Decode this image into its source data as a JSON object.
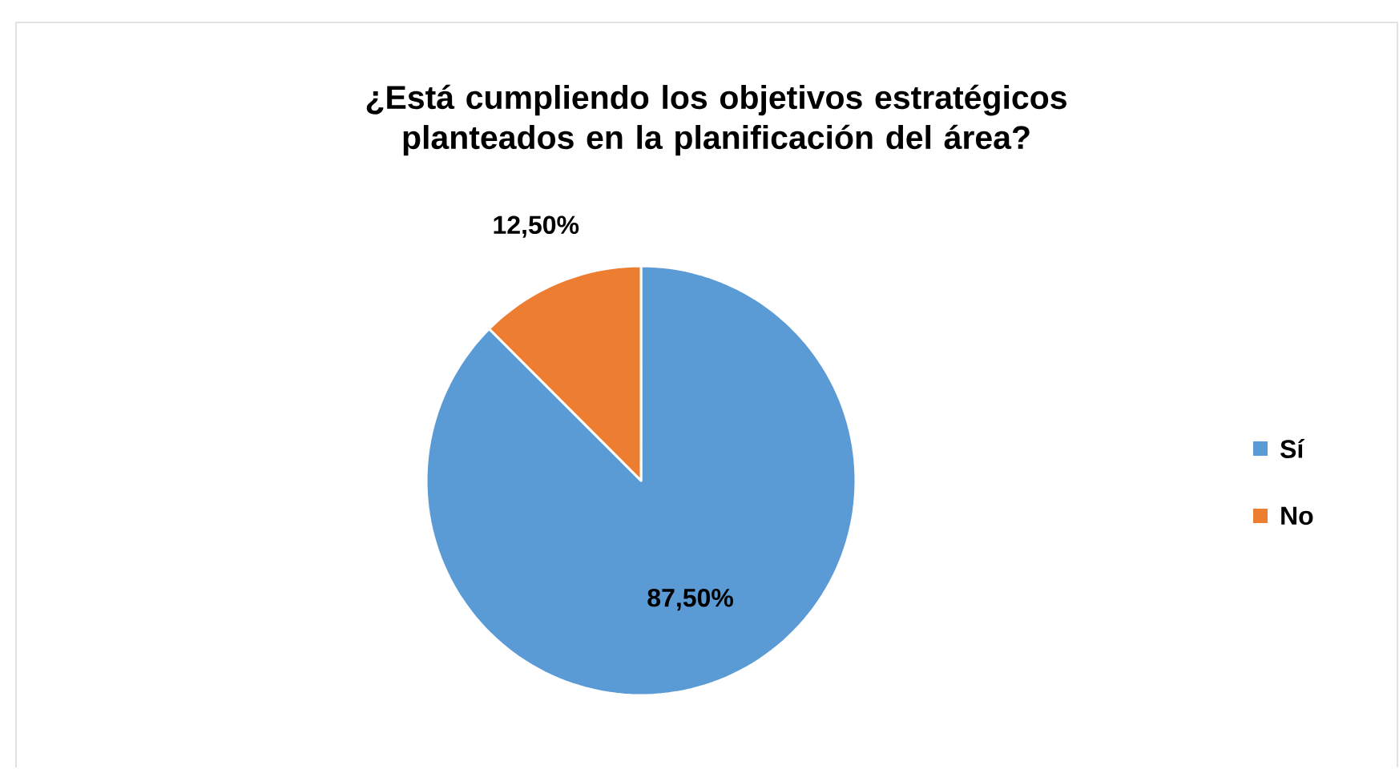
{
  "chart_data": {
    "type": "pie",
    "title": "¿Está cumpliendo los objetivos estratégicos planteados en la planificación del área?",
    "categories": [
      "Sí",
      "No"
    ],
    "values": [
      87.5,
      12.5
    ],
    "colors": [
      "#5b9bd5",
      "#ed7d31"
    ],
    "value_labels": [
      "87,50%",
      "12,50%"
    ],
    "legend": "right"
  }
}
